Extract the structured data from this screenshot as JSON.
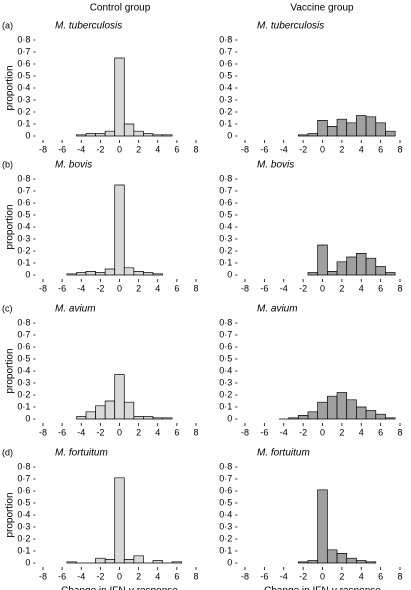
{
  "column_headers": [
    "Control group",
    "Vaccine group"
  ],
  "chart_data": [
    {
      "type": "histogram",
      "panel": "(a)",
      "title": "M. tuberculosis",
      "ylabel": "proportion",
      "color": "#d9d9d9",
      "bins": [
        -4.5,
        -3.5,
        -2.5,
        -1.5,
        -0.5,
        0.5,
        1.5,
        2.5,
        3.5,
        4.5,
        5.5
      ],
      "values": [
        0.01,
        0.02,
        0.02,
        0.04,
        0.65,
        0.1,
        0.04,
        0.02,
        0.01,
        0.01
      ],
      "xlim": [
        -9,
        9
      ],
      "ylim": [
        0,
        0.8
      ],
      "xticks": [
        -8,
        -6,
        -4,
        -2,
        0,
        2,
        4,
        6,
        8
      ],
      "yticks": [
        0,
        {
          "value": 0.1,
          "label": "0·1"
        },
        {
          "value": 0.2,
          "label": "0·2"
        },
        {
          "value": 0.3,
          "label": "0·3"
        },
        {
          "value": 0.4,
          "label": "0·4"
        },
        {
          "value": 0.5,
          "label": "0·5"
        },
        {
          "value": 0.6,
          "label": "0·6"
        },
        {
          "value": 0.7,
          "label": "0·7"
        },
        {
          "value": 0.8,
          "label": "0·8"
        }
      ]
    },
    {
      "type": "histogram",
      "title": "M. tuberculosis",
      "color": "#a0a0a0",
      "bins": [
        -2.5,
        -1.5,
        -0.5,
        0.5,
        1.5,
        2.5,
        3.5,
        4.5,
        5.5,
        6.5,
        7.5
      ],
      "values": [
        0.01,
        0.02,
        0.13,
        0.08,
        0.14,
        0.11,
        0.17,
        0.16,
        0.11,
        0.04
      ],
      "xlim": [
        -9,
        9
      ],
      "ylim": [
        0,
        0.8
      ],
      "xticks": [
        -8,
        -6,
        -4,
        -2,
        0,
        2,
        4,
        6,
        8
      ],
      "yticks": [
        0,
        {
          "value": 0.1,
          "label": "0·1"
        },
        {
          "value": 0.2,
          "label": "0·2"
        },
        {
          "value": 0.3,
          "label": "0·3"
        },
        {
          "value": 0.4,
          "label": "0·4"
        },
        {
          "value": 0.5,
          "label": "0·5"
        },
        {
          "value": 0.6,
          "label": "0·6"
        },
        {
          "value": 0.7,
          "label": "0·7"
        },
        {
          "value": 0.8,
          "label": "0·8"
        }
      ]
    },
    {
      "type": "histogram",
      "panel": "(b)",
      "title": "M. bovis",
      "ylabel": "proportion",
      "color": "#d9d9d9",
      "bins": [
        -5.5,
        -4.5,
        -3.5,
        -2.5,
        -1.5,
        -0.5,
        0.5,
        1.5,
        2.5,
        3.5,
        4.5
      ],
      "values": [
        0.01,
        0.02,
        0.03,
        0.02,
        0.05,
        0.75,
        0.06,
        0.03,
        0.02,
        0.01
      ],
      "xlim": [
        -9,
        9
      ],
      "ylim": [
        0,
        0.8
      ],
      "xticks": [
        -8,
        -6,
        -4,
        -2,
        0,
        2,
        4,
        6,
        8
      ],
      "yticks": [
        0,
        {
          "value": 0.1,
          "label": "0·1"
        },
        {
          "value": 0.2,
          "label": "0·2"
        },
        {
          "value": 0.3,
          "label": "0·3"
        },
        {
          "value": 0.4,
          "label": "0·4"
        },
        {
          "value": 0.5,
          "label": "0·5"
        },
        {
          "value": 0.6,
          "label": "0·6"
        },
        {
          "value": 0.7,
          "label": "0·7"
        },
        {
          "value": 0.8,
          "label": "0·8"
        }
      ]
    },
    {
      "type": "histogram",
      "title": "M. bovis",
      "color": "#a0a0a0",
      "bins": [
        -1.5,
        -0.5,
        0.5,
        1.5,
        2.5,
        3.5,
        4.5,
        5.5,
        6.5,
        7.5
      ],
      "values": [
        0.02,
        0.25,
        0.03,
        0.11,
        0.15,
        0.18,
        0.14,
        0.07,
        0.02
      ],
      "xlim": [
        -9,
        9
      ],
      "ylim": [
        0,
        0.8
      ],
      "xticks": [
        -8,
        -6,
        -4,
        -2,
        0,
        2,
        4,
        6,
        8
      ],
      "yticks": [
        0,
        {
          "value": 0.1,
          "label": "0·1"
        },
        {
          "value": 0.2,
          "label": "0·2"
        },
        {
          "value": 0.3,
          "label": "0·3"
        },
        {
          "value": 0.4,
          "label": "0·4"
        },
        {
          "value": 0.5,
          "label": "0·5"
        },
        {
          "value": 0.6,
          "label": "0·6"
        },
        {
          "value": 0.7,
          "label": "0·7"
        },
        {
          "value": 0.8,
          "label": "0·8"
        }
      ]
    },
    {
      "type": "histogram",
      "panel": "(c)",
      "title": "M. avium",
      "ylabel": "proportion",
      "color": "#d9d9d9",
      "bins": [
        -4.5,
        -3.5,
        -2.5,
        -1.5,
        -0.5,
        0.5,
        1.5,
        2.5,
        3.5,
        4.5,
        5.5
      ],
      "values": [
        0.02,
        0.06,
        0.11,
        0.15,
        0.37,
        0.14,
        0.02,
        0.02,
        0.01,
        0.01
      ],
      "xlim": [
        -9,
        9
      ],
      "ylim": [
        0,
        0.8
      ],
      "xticks": [
        -8,
        -6,
        -4,
        -2,
        0,
        2,
        4,
        6,
        8
      ],
      "yticks": [
        0,
        {
          "value": 0.1,
          "label": "0·1"
        },
        {
          "value": 0.2,
          "label": "0·2"
        },
        {
          "value": 0.3,
          "label": "0·3"
        },
        {
          "value": 0.4,
          "label": "0·4"
        },
        {
          "value": 0.5,
          "label": "0·5"
        },
        {
          "value": 0.6,
          "label": "0·6"
        },
        {
          "value": 0.7,
          "label": "0·7"
        },
        {
          "value": 0.8,
          "label": "0·8"
        }
      ]
    },
    {
      "type": "histogram",
      "title": "M. avium",
      "color": "#a0a0a0",
      "bins": [
        -4.5,
        -3.5,
        -2.5,
        -1.5,
        -0.5,
        0.5,
        1.5,
        2.5,
        3.5,
        4.5,
        5.5,
        6.5,
        7.5
      ],
      "values": [
        0,
        0.01,
        0.03,
        0.06,
        0.14,
        0.19,
        0.22,
        0.16,
        0.1,
        0.07,
        0.04,
        0.01
      ],
      "xlim": [
        -9,
        9
      ],
      "ylim": [
        0,
        0.8
      ],
      "xticks": [
        -8,
        -6,
        -4,
        -2,
        0,
        2,
        4,
        6,
        8
      ],
      "yticks": [
        0,
        {
          "value": 0.1,
          "label": "0·1"
        },
        {
          "value": 0.2,
          "label": "0·2"
        },
        {
          "value": 0.3,
          "label": "0·3"
        },
        {
          "value": 0.4,
          "label": "0·4"
        },
        {
          "value": 0.5,
          "label": "0·5"
        },
        {
          "value": 0.6,
          "label": "0·6"
        },
        {
          "value": 0.7,
          "label": "0·7"
        },
        {
          "value": 0.8,
          "label": "0·8"
        }
      ]
    },
    {
      "type": "histogram",
      "panel": "(d)",
      "title": "M. fortuitum",
      "ylabel": "proportion",
      "xlabel": "Change in IFN-γ response",
      "color": "#d9d9d9",
      "bins": [
        -5.5,
        -4.5,
        -3.5,
        -2.5,
        -1.5,
        -0.5,
        0.5,
        1.5,
        2.5,
        3.5,
        4.5,
        5.5,
        6.5
      ],
      "values": [
        0.01,
        0,
        0,
        0.04,
        0.03,
        0.71,
        0.03,
        0.06,
        0,
        0.02,
        0,
        0.01
      ],
      "xlim": [
        -9,
        9
      ],
      "ylim": [
        0,
        0.8
      ],
      "xticks": [
        -8,
        -6,
        -4,
        -2,
        0,
        2,
        4,
        6,
        8
      ],
      "yticks": [
        0,
        {
          "value": 0.1,
          "label": "0·1"
        },
        {
          "value": 0.2,
          "label": "0·2"
        },
        {
          "value": 0.3,
          "label": "0·3"
        },
        {
          "value": 0.4,
          "label": "0·4"
        },
        {
          "value": 0.5,
          "label": "0·5"
        },
        {
          "value": 0.6,
          "label": "0·6"
        },
        {
          "value": 0.7,
          "label": "0·7"
        },
        {
          "value": 0.8,
          "label": "0·8"
        }
      ]
    },
    {
      "type": "histogram",
      "title": "M. fortuitum",
      "xlabel": "Change in IFN-γ response",
      "color": "#a0a0a0",
      "bins": [
        -2.5,
        -1.5,
        -0.5,
        0.5,
        1.5,
        2.5,
        3.5,
        4.5,
        5.5
      ],
      "values": [
        0.01,
        0.02,
        0.61,
        0.11,
        0.08,
        0.04,
        0.02,
        0.01
      ],
      "xlim": [
        -9,
        9
      ],
      "ylim": [
        0,
        0.8
      ],
      "xticks": [
        -8,
        -6,
        -4,
        -2,
        0,
        2,
        4,
        6,
        8
      ],
      "yticks": [
        0,
        {
          "value": 0.1,
          "label": "0·1"
        },
        {
          "value": 0.2,
          "label": "0·2"
        },
        {
          "value": 0.3,
          "label": "0·3"
        },
        {
          "value": 0.4,
          "label": "0·4"
        },
        {
          "value": 0.5,
          "label": "0·5"
        },
        {
          "value": 0.6,
          "label": "0·6"
        },
        {
          "value": 0.7,
          "label": "0·7"
        },
        {
          "value": 0.8,
          "label": "0·8"
        }
      ]
    }
  ]
}
